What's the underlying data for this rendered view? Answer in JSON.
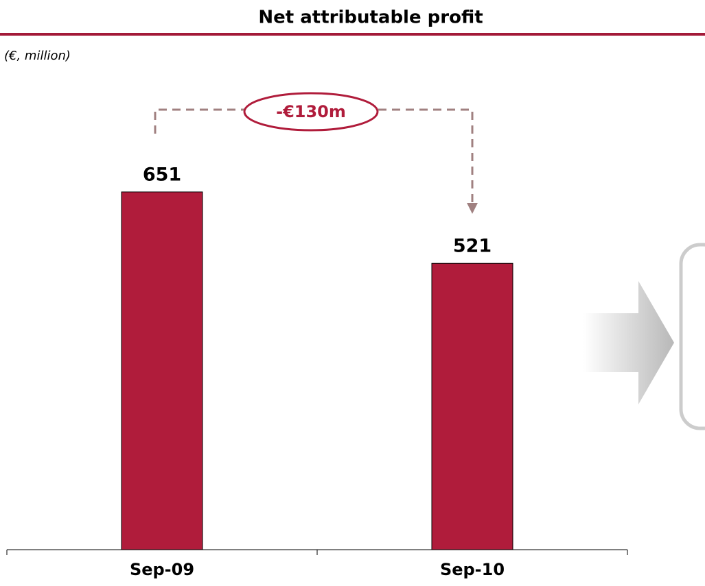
{
  "chart_data": {
    "type": "bar",
    "title": "Net attributable profit",
    "subtitle": "(€, million)",
    "categories": [
      "Sep-09",
      "Sep-10"
    ],
    "values": [
      651,
      521
    ],
    "color": "#b01c3b",
    "annotations": [
      "-€130m"
    ]
  }
}
